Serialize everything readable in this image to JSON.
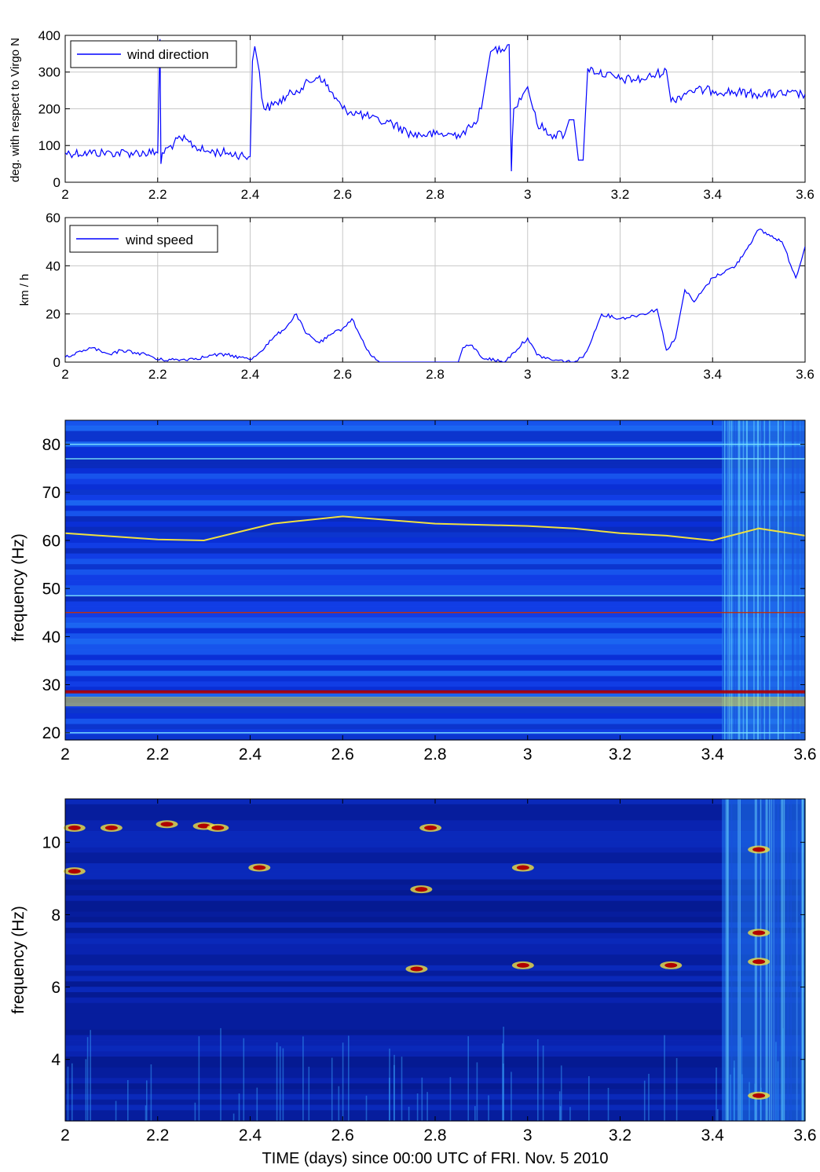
{
  "figure": {
    "xlabel": "TIME (days) since 00:00 UTC of FRI. Nov. 5 2010"
  },
  "chart_data": [
    {
      "type": "line",
      "ylabel": "deg. with respect to Virgo N",
      "xlim": [
        2,
        3.6
      ],
      "ylim": [
        0,
        400
      ],
      "xticks": [
        2,
        2.2,
        2.4,
        2.6,
        2.8,
        3,
        3.2,
        3.4,
        3.6
      ],
      "xtick_labels": [
        "2",
        "2.2",
        "2.4",
        "2.6",
        "2.8",
        "3",
        "3.2",
        "3.4",
        "3.6"
      ],
      "yticks": [
        0,
        100,
        200,
        300,
        400
      ],
      "ytick_labels": [
        "0",
        "100",
        "200",
        "300",
        "400"
      ],
      "grid": true,
      "legend": "top-left",
      "line_color": "#0000ff",
      "series": [
        {
          "name": "wind direction",
          "x": [
            2.0,
            2.05,
            2.1,
            2.15,
            2.2,
            2.205,
            2.207,
            2.21,
            2.25,
            2.3,
            2.35,
            2.4,
            2.405,
            2.41,
            2.42,
            2.425,
            2.43,
            2.45,
            2.5,
            2.55,
            2.6,
            2.65,
            2.68,
            2.7,
            2.75,
            2.8,
            2.85,
            2.88,
            2.9,
            2.91,
            2.92,
            2.96,
            2.965,
            2.967,
            2.97,
            2.99,
            3.0,
            3.02,
            3.05,
            3.08,
            3.09,
            3.1,
            3.11,
            3.12,
            3.13,
            3.2,
            3.25,
            3.3,
            3.31,
            3.35,
            3.4,
            3.5,
            3.6
          ],
          "y": [
            80,
            80,
            80,
            80,
            80,
            390,
            50,
            80,
            120,
            85,
            80,
            70,
            330,
            370,
            300,
            230,
            200,
            210,
            250,
            290,
            200,
            180,
            165,
            165,
            130,
            130,
            130,
            150,
            200,
            280,
            355,
            375,
            30,
            120,
            200,
            240,
            260,
            160,
            130,
            130,
            170,
            170,
            60,
            60,
            310,
            280,
            280,
            305,
            220,
            250,
            250,
            240,
            240
          ]
        }
      ]
    },
    {
      "type": "line",
      "ylabel": "km / h",
      "xlim": [
        2,
        3.6
      ],
      "ylim": [
        0,
        60
      ],
      "xticks": [
        2,
        2.2,
        2.4,
        2.6,
        2.8,
        3,
        3.2,
        3.4,
        3.6
      ],
      "xtick_labels": [
        "2",
        "2.2",
        "2.4",
        "2.6",
        "2.8",
        "3",
        "3.2",
        "3.4",
        "3.6"
      ],
      "yticks": [
        0,
        20,
        40,
        60
      ],
      "ytick_labels": [
        "0",
        "20",
        "40",
        "60"
      ],
      "grid": true,
      "legend": "top-left",
      "line_color": "#0000ff",
      "series": [
        {
          "name": "wind speed",
          "x": [
            2.0,
            2.02,
            2.04,
            2.06,
            2.08,
            2.1,
            2.12,
            2.15,
            2.18,
            2.2,
            2.25,
            2.3,
            2.32,
            2.35,
            2.38,
            2.4,
            2.42,
            2.45,
            2.48,
            2.5,
            2.52,
            2.55,
            2.58,
            2.6,
            2.62,
            2.64,
            2.66,
            2.68,
            2.7,
            2.75,
            2.8,
            2.85,
            2.86,
            2.88,
            2.9,
            2.95,
            2.97,
            3.0,
            3.02,
            3.05,
            3.1,
            3.12,
            3.14,
            3.16,
            3.2,
            3.25,
            3.28,
            3.3,
            3.32,
            3.34,
            3.36,
            3.4,
            3.45,
            3.5,
            3.55,
            3.58,
            3.6
          ],
          "y": [
            2,
            3,
            5,
            6,
            4,
            3,
            5,
            4,
            3,
            1,
            1,
            2,
            3,
            3,
            2,
            1,
            4,
            10,
            15,
            20,
            12,
            8,
            12,
            14,
            18,
            10,
            3,
            0,
            0,
            0,
            0,
            0,
            6,
            7,
            2,
            0,
            4,
            10,
            3,
            1,
            0,
            2,
            10,
            20,
            18,
            20,
            22,
            5,
            10,
            30,
            25,
            35,
            40,
            55,
            50,
            35,
            48
          ]
        }
      ]
    },
    {
      "type": "heatmap",
      "ylabel": "frequency (Hz)",
      "xlim": [
        2,
        3.6
      ],
      "ylim": [
        18.5,
        85
      ],
      "xticks": [
        2,
        2.2,
        2.4,
        2.6,
        2.8,
        3,
        3.2,
        3.4,
        3.6
      ],
      "xtick_labels": [
        "2",
        "2.2",
        "2.4",
        "2.6",
        "2.8",
        "3",
        "3.2",
        "3.4",
        "3.6"
      ],
      "yticks": [
        20,
        30,
        40,
        50,
        60,
        70,
        80
      ],
      "ytick_labels": [
        "20",
        "30",
        "40",
        "50",
        "60",
        "70",
        "80"
      ],
      "colormap": "jet",
      "features": {
        "wandering_line": {
          "x": [
            2.0,
            2.2,
            2.3,
            2.45,
            2.6,
            2.8,
            3.0,
            3.1,
            3.2,
            3.3,
            3.4,
            3.5,
            3.6
          ],
          "y": [
            61.5,
            60.2,
            60.0,
            63.5,
            65.0,
            63.5,
            63.0,
            62.5,
            61.5,
            61.0,
            60.0,
            62.5,
            61.0
          ]
        },
        "constant_lines_hz": [
          20,
          28.5,
          45,
          48.5,
          77,
          80
        ],
        "broadband_onset_day": 3.42
      }
    },
    {
      "type": "heatmap",
      "ylabel": "frequency (Hz)",
      "xlim": [
        2,
        3.6
      ],
      "ylim": [
        2.3,
        11.2
      ],
      "xticks": [
        2,
        2.2,
        2.4,
        2.6,
        2.8,
        3,
        3.2,
        3.4,
        3.6
      ],
      "xtick_labels": [
        "2",
        "2.2",
        "2.4",
        "2.6",
        "2.8",
        "3",
        "3.2",
        "3.4",
        "3.6"
      ],
      "yticks": [
        4,
        6,
        8,
        10
      ],
      "ytick_labels": [
        "4",
        "6",
        "8",
        "10"
      ],
      "colormap": "jet",
      "features": {
        "hot_spots": [
          {
            "x": 2.02,
            "y": 10.4
          },
          {
            "x": 2.02,
            "y": 9.2
          },
          {
            "x": 2.1,
            "y": 10.4
          },
          {
            "x": 2.22,
            "y": 10.5
          },
          {
            "x": 2.3,
            "y": 10.45
          },
          {
            "x": 2.33,
            "y": 10.4
          },
          {
            "x": 2.42,
            "y": 9.3
          },
          {
            "x": 2.76,
            "y": 6.5
          },
          {
            "x": 2.77,
            "y": 8.7
          },
          {
            "x": 2.79,
            "y": 10.4
          },
          {
            "x": 2.99,
            "y": 6.6
          },
          {
            "x": 2.99,
            "y": 9.3
          },
          {
            "x": 3.31,
            "y": 6.6
          },
          {
            "x": 3.5,
            "y": 9.8
          },
          {
            "x": 3.5,
            "y": 7.5
          },
          {
            "x": 3.5,
            "y": 6.7
          },
          {
            "x": 3.5,
            "y": 3.0
          }
        ],
        "broadband_onset_day": 3.42
      }
    }
  ]
}
